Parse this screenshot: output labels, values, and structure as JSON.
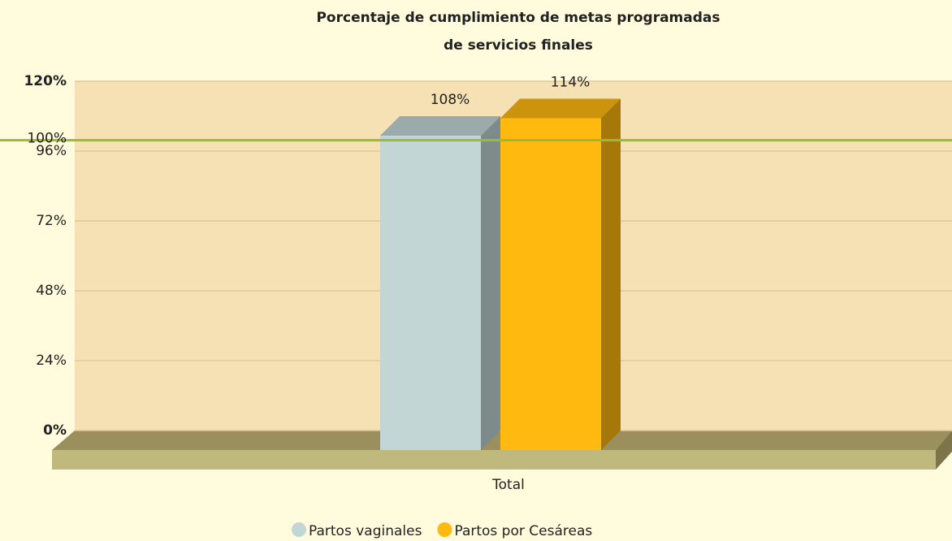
{
  "chart_data": {
    "type": "bar3d",
    "title": [
      "Porcentaje de cumplimiento de metas programadas",
      "de servicios finales"
    ],
    "categories": [
      "Total"
    ],
    "series": [
      {
        "name": "Partos vaginales",
        "color": "#c2d6d6",
        "values": [
          108
        ],
        "value_labels": [
          "108%"
        ]
      },
      {
        "name": "Partos por Cesáreas",
        "color": "#ffb90f",
        "values": [
          114
        ],
        "value_labels": [
          "114%"
        ]
      }
    ],
    "ylim": [
      0,
      120
    ],
    "yticks": [
      {
        "value": 0,
        "label": "0%"
      },
      {
        "value": 24,
        "label": "24%"
      },
      {
        "value": 48,
        "label": "48%"
      },
      {
        "value": 72,
        "label": "72%"
      },
      {
        "value": 96,
        "label": "96%"
      },
      {
        "value": 120,
        "label": "120%"
      }
    ],
    "trendline": {
      "value": 100,
      "label": "100%",
      "color": "#9aba3c"
    },
    "grid": true,
    "legend": "bottom"
  }
}
